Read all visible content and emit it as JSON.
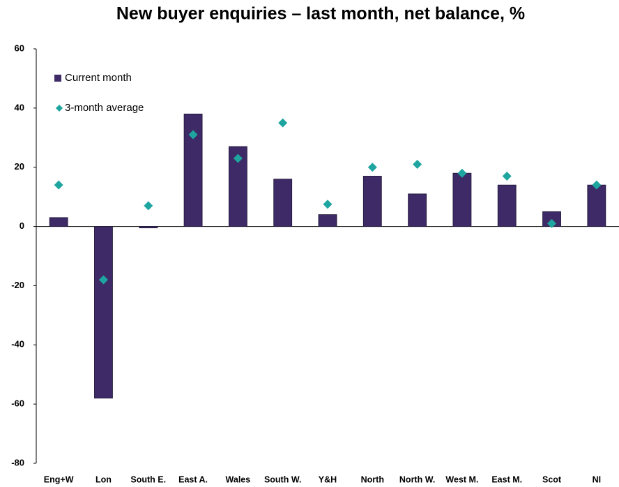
{
  "chart_data": {
    "type": "bar",
    "title": "New buyer enquiries – last month, net balance, %",
    "categories": [
      "Eng+W",
      "Lon",
      "South E.",
      "East A.",
      "Wales",
      "South W.",
      "Y&H",
      "North",
      "North W.",
      "West M.",
      "East M.",
      "Scot",
      "NI"
    ],
    "series": [
      {
        "name": "Current month",
        "type": "bar",
        "color": "#3d2a66",
        "values": [
          3,
          -58,
          -0.5,
          38,
          27,
          16,
          4,
          17,
          11,
          18,
          14,
          5,
          14
        ]
      },
      {
        "name": "3-month average",
        "type": "scatter",
        "color": "#1fa5a0",
        "values": [
          14,
          -18,
          7,
          31,
          23,
          35,
          7.5,
          20,
          21,
          18,
          17,
          1,
          14
        ]
      }
    ],
    "ylim": [
      -80,
      60
    ],
    "yticks": [
      -80,
      -60,
      -40,
      -20,
      0,
      20,
      40,
      60
    ],
    "grid": false,
    "legend": "top-left"
  }
}
